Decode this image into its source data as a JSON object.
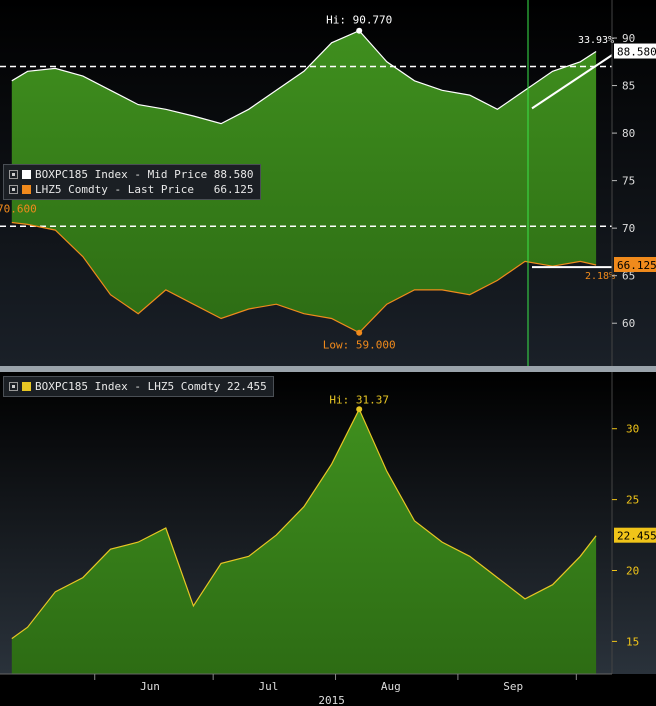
{
  "colors": {
    "bg_top": "#000000",
    "bg_bottom": "#2a323b",
    "area_fill_top": "#3f8f1e",
    "area_fill_bottom": "#2d6c14",
    "white_series": "#ffffff",
    "orange_series": "#f08a1c",
    "yellow_series": "#e7c624",
    "axis_text": "#f0c419",
    "vline": "#39e64a",
    "label_white_bg": "#ffffff",
    "label_orange_bg": "#f08a1c",
    "label_yellow_bg": "#f0c419"
  },
  "xaxis": {
    "months": [
      "Jun",
      "Jul",
      "Aug",
      "Sep"
    ],
    "year": "2015"
  },
  "panel1": {
    "legend": [
      {
        "swatch": "#ffffff",
        "text": "BOXPC185 Index - Mid Price 88.580"
      },
      {
        "swatch": "#f08a1c",
        "text": "LHZ5 Comdty - Last Price   66.125"
      }
    ],
    "hi_label": "Hi: 90.770",
    "low_label": "Low: 59.000",
    "left_value_label": "70.600",
    "pct_label_top": "33.93%",
    "pct_label_bottom": "2.18%",
    "last_value_white": "88.580",
    "last_value_orange": "66.125",
    "yticks": [
      "90",
      "85",
      "80",
      "75",
      "70",
      "65",
      "60"
    ]
  },
  "panel2": {
    "legend": [
      {
        "swatch": "#e7c624",
        "text": "BOXPC185 Index - LHZ5 Comdty 22.455"
      }
    ],
    "hi_label": "Hi: 31.37",
    "last_value": "22.455",
    "yticks": [
      "30",
      "25",
      "20",
      "15"
    ]
  },
  "chart_data": [
    {
      "type": "line",
      "title": "",
      "ylim": [
        55.5,
        94
      ],
      "x": [
        "2015-05-11",
        "2015-05-15",
        "2015-05-22",
        "2015-05-29",
        "2015-06-05",
        "2015-06-12",
        "2015-06-19",
        "2015-06-26",
        "2015-07-03",
        "2015-07-10",
        "2015-07-17",
        "2015-07-24",
        "2015-07-31",
        "2015-08-07",
        "2015-08-14",
        "2015-08-21",
        "2015-08-28",
        "2015-09-04",
        "2015-09-11",
        "2015-09-18",
        "2015-09-25",
        "2015-10-02",
        "2015-10-06"
      ],
      "series": [
        {
          "name": "BOXPC185 Index - Mid Price",
          "values": [
            85.5,
            86.5,
            86.8,
            86.0,
            84.5,
            83.0,
            82.5,
            81.8,
            81.0,
            82.5,
            84.5,
            86.5,
            89.5,
            90.77,
            87.5,
            85.5,
            84.5,
            84.0,
            82.5,
            84.5,
            86.5,
            87.5,
            88.58
          ]
        },
        {
          "name": "LHZ5 Comdty - Last Price",
          "values": [
            70.6,
            70.4,
            69.8,
            67.0,
            63.0,
            61.0,
            63.5,
            62.0,
            60.5,
            61.5,
            62.0,
            61.0,
            60.5,
            59.0,
            62.0,
            63.5,
            63.5,
            63.0,
            64.5,
            66.5,
            66.0,
            66.5,
            66.125
          ]
        }
      ],
      "hlines": [
        87.0,
        70.2
      ]
    },
    {
      "type": "area",
      "title": "",
      "ylim": [
        12.7,
        34
      ],
      "x": [
        "2015-05-11",
        "2015-05-15",
        "2015-05-22",
        "2015-05-29",
        "2015-06-05",
        "2015-06-12",
        "2015-06-19",
        "2015-06-26",
        "2015-07-03",
        "2015-07-10",
        "2015-07-17",
        "2015-07-24",
        "2015-07-31",
        "2015-08-07",
        "2015-08-14",
        "2015-08-21",
        "2015-08-28",
        "2015-09-04",
        "2015-09-11",
        "2015-09-18",
        "2015-09-25",
        "2015-10-02",
        "2015-10-06"
      ],
      "series": [
        {
          "name": "BOXPC185 Index - LHZ5 Comdty",
          "values": [
            15.2,
            16.0,
            18.5,
            19.5,
            21.5,
            22.0,
            23.0,
            17.5,
            20.5,
            21.0,
            22.5,
            24.5,
            27.5,
            31.37,
            27.0,
            23.5,
            22.0,
            21.0,
            19.5,
            18.0,
            19.0,
            21.0,
            22.455
          ]
        }
      ]
    }
  ]
}
